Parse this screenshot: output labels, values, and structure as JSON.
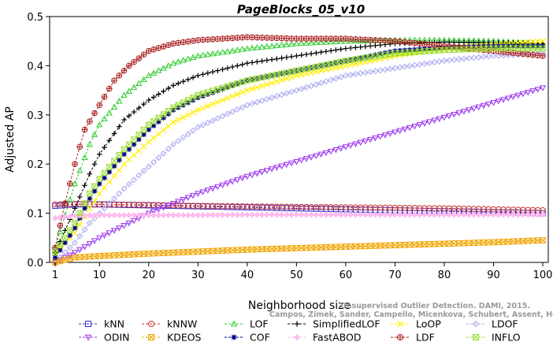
{
  "chart_data": {
    "type": "line",
    "title": "PageBlocks_05_v10",
    "xlabel": "Neighborhood size",
    "ylabel": "Adjusted AP",
    "xlim": [
      1,
      100
    ],
    "ylim": [
      0,
      0.5
    ],
    "xticks": [
      1,
      10,
      20,
      30,
      40,
      50,
      60,
      70,
      80,
      90,
      100
    ],
    "yticks": [
      0.0,
      0.1,
      0.2,
      0.3,
      0.4,
      0.5
    ],
    "ytick_labels": [
      "0.0",
      "0.1",
      "0.2",
      "0.3",
      "0.4",
      "0.5"
    ],
    "legend_position": "bottom",
    "series": [
      {
        "name": "kNN",
        "color": "#3333cc",
        "marker": "square",
        "points": [
          [
            1,
            0.115
          ],
          [
            5,
            0.118
          ],
          [
            10,
            0.118
          ],
          [
            20,
            0.116
          ],
          [
            30,
            0.114
          ],
          [
            40,
            0.112
          ],
          [
            50,
            0.11
          ],
          [
            60,
            0.108
          ],
          [
            70,
            0.106
          ],
          [
            80,
            0.104
          ],
          [
            90,
            0.102
          ],
          [
            100,
            0.1
          ]
        ]
      },
      {
        "name": "kNNW",
        "color": "#cc3333",
        "marker": "circle",
        "points": [
          [
            1,
            0.118
          ],
          [
            5,
            0.119
          ],
          [
            10,
            0.118
          ],
          [
            20,
            0.117
          ],
          [
            30,
            0.115
          ],
          [
            40,
            0.114
          ],
          [
            50,
            0.113
          ],
          [
            60,
            0.112
          ],
          [
            70,
            0.111
          ],
          [
            80,
            0.11
          ],
          [
            90,
            0.108
          ],
          [
            100,
            0.106
          ]
        ]
      },
      {
        "name": "LOF",
        "color": "#33cc33",
        "marker": "triangle-up",
        "points": [
          [
            1,
            0.03
          ],
          [
            5,
            0.16
          ],
          [
            8,
            0.24
          ],
          [
            10,
            0.28
          ],
          [
            15,
            0.34
          ],
          [
            20,
            0.38
          ],
          [
            25,
            0.405
          ],
          [
            30,
            0.42
          ],
          [
            40,
            0.435
          ],
          [
            50,
            0.445
          ],
          [
            60,
            0.45
          ],
          [
            70,
            0.452
          ],
          [
            80,
            0.452
          ],
          [
            90,
            0.45
          ],
          [
            100,
            0.445
          ]
        ]
      },
      {
        "name": "SimplifiedLOF",
        "color": "#000000",
        "marker": "plus",
        "points": [
          [
            1,
            0.02
          ],
          [
            5,
            0.11
          ],
          [
            8,
            0.18
          ],
          [
            10,
            0.22
          ],
          [
            15,
            0.29
          ],
          [
            20,
            0.33
          ],
          [
            25,
            0.36
          ],
          [
            30,
            0.38
          ],
          [
            40,
            0.405
          ],
          [
            50,
            0.42
          ],
          [
            60,
            0.435
          ],
          [
            70,
            0.445
          ],
          [
            80,
            0.448
          ],
          [
            90,
            0.447
          ],
          [
            100,
            0.445
          ]
        ]
      },
      {
        "name": "LoOP",
        "color": "#ffee00",
        "marker": "x",
        "points": [
          [
            1,
            0.02
          ],
          [
            5,
            0.06
          ],
          [
            8,
            0.11
          ],
          [
            10,
            0.14
          ],
          [
            15,
            0.2
          ],
          [
            20,
            0.245
          ],
          [
            25,
            0.285
          ],
          [
            30,
            0.31
          ],
          [
            40,
            0.35
          ],
          [
            50,
            0.38
          ],
          [
            60,
            0.4
          ],
          [
            70,
            0.42
          ],
          [
            80,
            0.435
          ],
          [
            90,
            0.443
          ],
          [
            100,
            0.45
          ]
        ]
      },
      {
        "name": "LDOF",
        "color": "#aaaaee",
        "marker": "diamond",
        "points": [
          [
            1,
            0.0
          ],
          [
            5,
            0.04
          ],
          [
            8,
            0.08
          ],
          [
            10,
            0.1
          ],
          [
            15,
            0.15
          ],
          [
            20,
            0.195
          ],
          [
            25,
            0.24
          ],
          [
            30,
            0.275
          ],
          [
            40,
            0.32
          ],
          [
            50,
            0.35
          ],
          [
            60,
            0.38
          ],
          [
            70,
            0.395
          ],
          [
            80,
            0.41
          ],
          [
            90,
            0.42
          ],
          [
            100,
            0.425
          ]
        ]
      },
      {
        "name": "ODIN",
        "color": "#9933ee",
        "marker": "triangle-down",
        "points": [
          [
            1,
            0.0
          ],
          [
            5,
            0.02
          ],
          [
            10,
            0.05
          ],
          [
            15,
            0.075
          ],
          [
            20,
            0.1
          ],
          [
            30,
            0.14
          ],
          [
            40,
            0.175
          ],
          [
            50,
            0.205
          ],
          [
            60,
            0.235
          ],
          [
            70,
            0.265
          ],
          [
            80,
            0.295
          ],
          [
            90,
            0.325
          ],
          [
            100,
            0.355
          ]
        ]
      },
      {
        "name": "KDEOS",
        "color": "#f0a500",
        "marker": "square-x",
        "points": [
          [
            1,
            0.0
          ],
          [
            5,
            0.01
          ],
          [
            10,
            0.013
          ],
          [
            20,
            0.018
          ],
          [
            30,
            0.022
          ],
          [
            40,
            0.026
          ],
          [
            50,
            0.029
          ],
          [
            60,
            0.032
          ],
          [
            70,
            0.035
          ],
          [
            80,
            0.038
          ],
          [
            90,
            0.041
          ],
          [
            100,
            0.045
          ]
        ]
      },
      {
        "name": "COF",
        "color": "#000080",
        "marker": "asterisk",
        "points": [
          [
            1,
            0.01
          ],
          [
            5,
            0.07
          ],
          [
            8,
            0.13
          ],
          [
            10,
            0.16
          ],
          [
            15,
            0.22
          ],
          [
            20,
            0.27
          ],
          [
            25,
            0.31
          ],
          [
            30,
            0.335
          ],
          [
            40,
            0.37
          ],
          [
            50,
            0.39
          ],
          [
            60,
            0.41
          ],
          [
            70,
            0.43
          ],
          [
            80,
            0.437
          ],
          [
            90,
            0.44
          ],
          [
            100,
            0.44
          ]
        ]
      },
      {
        "name": "FastABOD",
        "color": "#ffbbee",
        "marker": "diamond-filled",
        "points": [
          [
            1,
            0.09
          ],
          [
            5,
            0.095
          ],
          [
            10,
            0.096
          ],
          [
            20,
            0.096
          ],
          [
            30,
            0.096
          ],
          [
            40,
            0.097
          ],
          [
            50,
            0.097
          ],
          [
            60,
            0.097
          ],
          [
            70,
            0.097
          ],
          [
            80,
            0.097
          ],
          [
            90,
            0.097
          ],
          [
            100,
            0.097
          ]
        ]
      },
      {
        "name": "LDF",
        "color": "#aa2222",
        "marker": "circle-plus",
        "points": [
          [
            1,
            0.03
          ],
          [
            3,
            0.12
          ],
          [
            5,
            0.2
          ],
          [
            7,
            0.27
          ],
          [
            10,
            0.32
          ],
          [
            13,
            0.37
          ],
          [
            16,
            0.4
          ],
          [
            20,
            0.43
          ],
          [
            25,
            0.445
          ],
          [
            30,
            0.452
          ],
          [
            40,
            0.458
          ],
          [
            50,
            0.455
          ],
          [
            60,
            0.455
          ],
          [
            70,
            0.45
          ],
          [
            80,
            0.44
          ],
          [
            90,
            0.43
          ],
          [
            100,
            0.42
          ]
        ]
      },
      {
        "name": "INFLO",
        "color": "#99dd33",
        "marker": "square-x",
        "points": [
          [
            1,
            0.02
          ],
          [
            5,
            0.08
          ],
          [
            8,
            0.14
          ],
          [
            10,
            0.17
          ],
          [
            15,
            0.23
          ],
          [
            20,
            0.28
          ],
          [
            25,
            0.315
          ],
          [
            30,
            0.34
          ],
          [
            40,
            0.37
          ],
          [
            50,
            0.39
          ],
          [
            60,
            0.41
          ],
          [
            70,
            0.425
          ],
          [
            80,
            0.432
          ],
          [
            90,
            0.435
          ],
          [
            100,
            0.435
          ]
        ]
      }
    ]
  },
  "legend_order": [
    "kNN",
    "kNNW",
    "LOF",
    "SimplifiedLOF",
    "LoOP",
    "LDOF",
    "ODIN",
    "KDEOS",
    "COF",
    "FastABOD",
    "LDF",
    "INFLO"
  ],
  "watermark": {
    "line1": "Unsupervised Outlier Detection. DAMI, 2015.",
    "line2": "Campos, Zimek, Sander, Campello, Micenkova, Schubert, Assent, Houle"
  }
}
